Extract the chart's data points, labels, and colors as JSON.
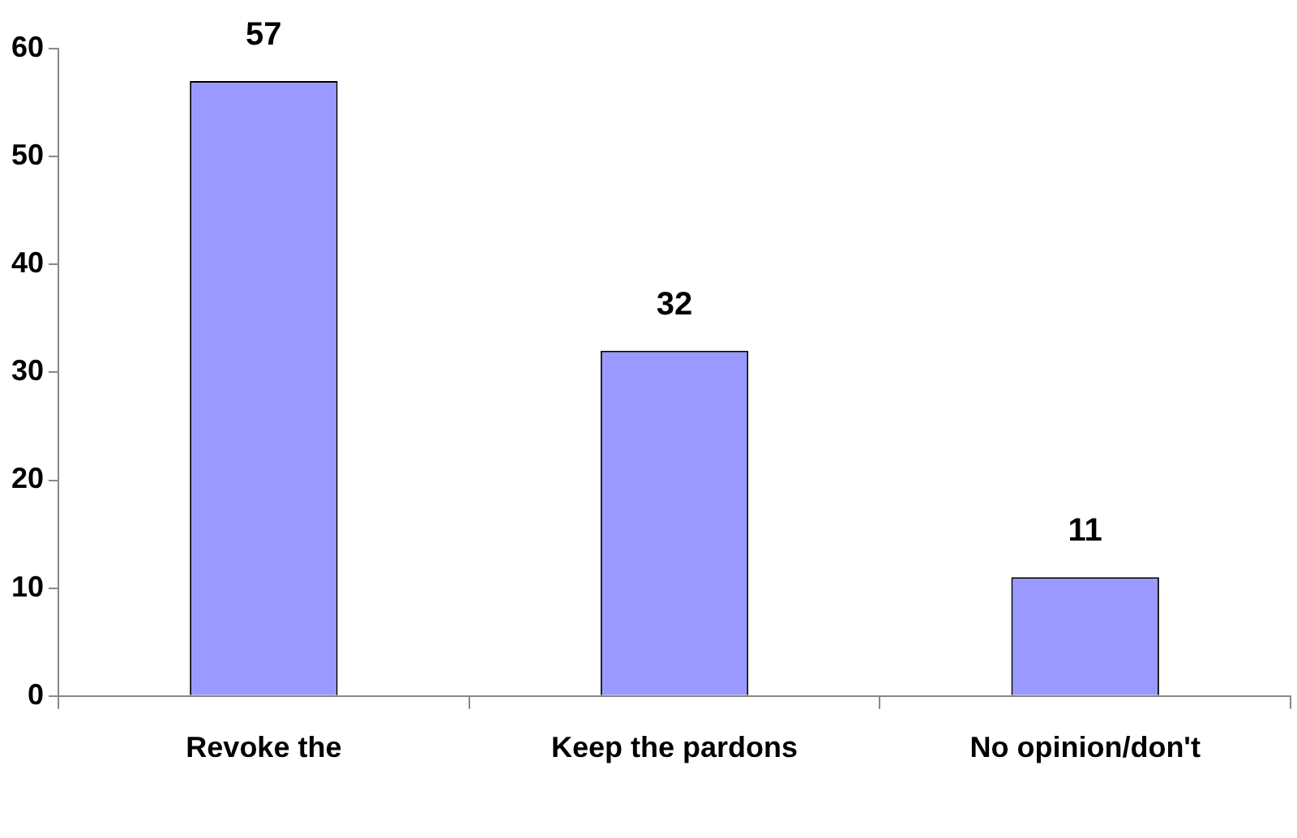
{
  "chart_data": {
    "type": "bar",
    "categories": [
      "Revoke the",
      "Keep the pardons",
      "No opinion/don't"
    ],
    "values": [
      57,
      32,
      11
    ],
    "color": "#9999ff",
    "ylim": [
      0,
      60
    ],
    "yticks": [
      0,
      10,
      20,
      30,
      40,
      50,
      60
    ],
    "grid": false,
    "legend": false,
    "data_labels": true
  }
}
